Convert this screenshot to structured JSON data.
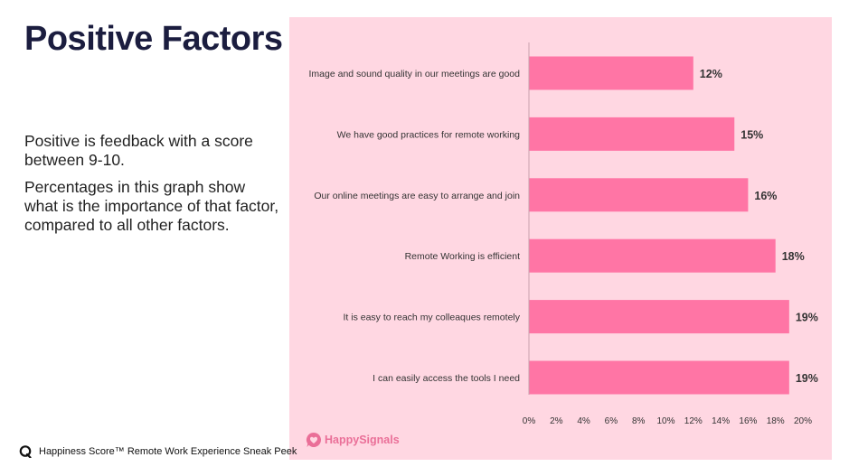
{
  "slide": {
    "title": "Positive Factors",
    "description": [
      "Positive is feedback with a score between 9-10.",
      "Percentages in this graph show what is the importance of that factor, compared to all other factors."
    ]
  },
  "footer": {
    "text": "Happiness Score™ Remote Work Experience Sneak Peek",
    "icon": "speech-bubble-q-icon"
  },
  "logo": {
    "text": "HappySignals",
    "icon": "heart-bubble-icon",
    "color": "#ea6f98"
  },
  "colors": {
    "panel_background": "#ffd7e2",
    "bar": "#ff75a5",
    "title": "#1b1d3f"
  },
  "chart_data": {
    "type": "bar",
    "orientation": "horizontal",
    "categories": [
      "Image and sound quality in our meetings are good",
      "We have good practices for remote working",
      "Our online meetings are easy to arrange and join",
      "Remote Working is efficient",
      "It is easy to reach my colleaques remotely",
      "I can easily access the tools I need"
    ],
    "values": [
      12,
      15,
      16,
      18,
      19,
      19
    ],
    "value_labels": [
      "12%",
      "15%",
      "16%",
      "18%",
      "19%",
      "19%"
    ],
    "x_ticks": [
      0,
      2,
      4,
      6,
      8,
      10,
      12,
      14,
      16,
      18,
      20
    ],
    "x_tick_labels": [
      "0%",
      "2%",
      "4%",
      "6%",
      "8%",
      "10%",
      "12%",
      "14%",
      "16%",
      "18%",
      "20%"
    ],
    "xlim": [
      0,
      20
    ],
    "grid": false,
    "legend": "none"
  }
}
